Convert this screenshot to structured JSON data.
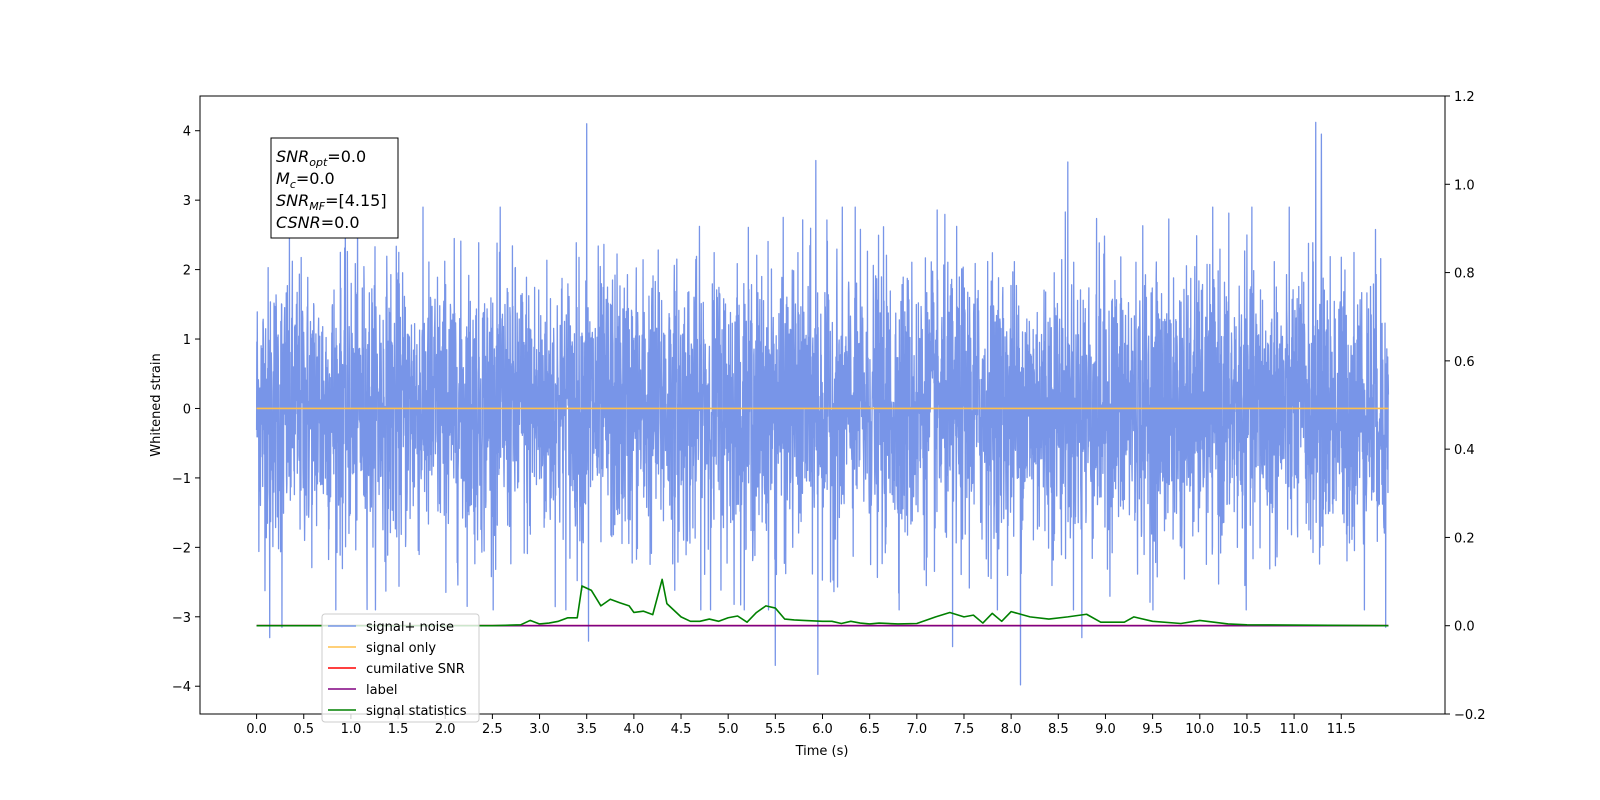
{
  "chart_data": {
    "type": "line",
    "xlabel": "Time (s)",
    "ylabel": "Whitened strain",
    "xlim": [
      -0.6,
      12.6
    ],
    "ylim": [
      -4.4,
      4.5
    ],
    "y2lim": [
      -0.2,
      1.2
    ],
    "x_ticks": [
      0.0,
      0.5,
      1.0,
      1.5,
      2.0,
      2.5,
      3.0,
      3.5,
      4.0,
      4.5,
      5.0,
      5.5,
      6.0,
      6.5,
      7.0,
      7.5,
      8.0,
      8.5,
      9.0,
      9.5,
      10.0,
      10.5,
      11.0,
      11.5
    ],
    "x_tick_labels": [
      "0.0",
      "0.5",
      "1.0",
      "1.5",
      "2.0",
      "2.5",
      "3.0",
      "3.5",
      "4.0",
      "4.5",
      "5.0",
      "5.5",
      "6.0",
      "6.5",
      "7.0",
      "7.5",
      "8.0",
      "8.5",
      "9.0",
      "9.5",
      "10.0",
      "10.5",
      "11.0",
      "11.5"
    ],
    "y_ticks": [
      -4,
      -3,
      -2,
      -1,
      0,
      1,
      2,
      3,
      4
    ],
    "y_tick_labels": [
      "−4",
      "−3",
      "−2",
      "−1",
      "0",
      "1",
      "2",
      "3",
      "4"
    ],
    "y2_ticks": [
      -0.2,
      0.0,
      0.2,
      0.4,
      0.6,
      0.8,
      1.0,
      1.2
    ],
    "y2_tick_labels": [
      "−0.2",
      "0.0",
      "0.2",
      "0.4",
      "0.6",
      "0.8",
      "1.0",
      "1.2"
    ],
    "grid": false,
    "legend_position": "lower-left",
    "annotation": {
      "lines": [
        {
          "base": "SNR",
          "sub": "opt",
          "rest": "=0.0"
        },
        {
          "base": "M",
          "sub": "c",
          "rest": "=0.0"
        },
        {
          "base": "SNR",
          "sub": "MF",
          "rest": "=[4.15]"
        },
        {
          "base": "CSNR",
          "sub": "",
          "rest": "=0.0"
        }
      ]
    },
    "series": [
      {
        "name": "signal+ noise",
        "color": "#7895e8",
        "axis": "left",
        "kind": "noise",
        "x_range": [
          0.0,
          12.0
        ],
        "std": 1.0,
        "peaks": [
          [
            0.14,
            -3.3
          ],
          [
            0.27,
            -3.15
          ],
          [
            3.5,
            4.1
          ],
          [
            3.52,
            -3.35
          ],
          [
            5.5,
            -3.7
          ],
          [
            5.93,
            3.57
          ],
          [
            5.95,
            -3.83
          ],
          [
            7.38,
            -3.43
          ],
          [
            8.1,
            -3.98
          ],
          [
            8.6,
            3.55
          ],
          [
            8.75,
            -3.3
          ],
          [
            11.23,
            4.12
          ],
          [
            11.29,
            3.95
          ],
          [
            11.97,
            -3.15
          ]
        ]
      },
      {
        "name": "signal only",
        "color": "#ffc04d",
        "axis": "left",
        "x": [
          0.0,
          12.0
        ],
        "y": [
          0.0,
          0.0
        ]
      },
      {
        "name": "cumilative SNR",
        "color": "#ff0000",
        "axis": "right",
        "x": [
          0.0,
          12.0
        ],
        "y": [
          0.0,
          0.0
        ]
      },
      {
        "name": "label",
        "color": "#800080",
        "axis": "right",
        "x": [
          0.0,
          12.0
        ],
        "y": [
          0.0,
          0.0
        ]
      },
      {
        "name": "signal statistics",
        "color": "#008000",
        "axis": "right",
        "x": [
          0.0,
          2.5,
          2.8,
          2.9,
          3.0,
          3.1,
          3.2,
          3.3,
          3.4,
          3.45,
          3.55,
          3.65,
          3.75,
          3.85,
          3.95,
          4.0,
          4.1,
          4.2,
          4.3,
          4.35,
          4.5,
          4.6,
          4.7,
          4.8,
          4.9,
          5.0,
          5.1,
          5.2,
          5.3,
          5.4,
          5.5,
          5.6,
          5.7,
          5.8,
          6.0,
          6.1,
          6.2,
          6.3,
          6.4,
          6.5,
          6.6,
          6.8,
          7.0,
          7.2,
          7.35,
          7.5,
          7.6,
          7.7,
          7.8,
          7.9,
          8.0,
          8.2,
          8.4,
          8.6,
          8.8,
          8.95,
          9.2,
          9.3,
          9.5,
          9.8,
          10.0,
          10.3,
          10.5,
          12.0
        ],
        "y": [
          0.0,
          0.0,
          0.002,
          0.012,
          0.004,
          0.006,
          0.01,
          0.018,
          0.018,
          0.09,
          0.08,
          0.045,
          0.06,
          0.052,
          0.045,
          0.03,
          0.033,
          0.025,
          0.105,
          0.05,
          0.02,
          0.01,
          0.01,
          0.015,
          0.01,
          0.018,
          0.022,
          0.008,
          0.03,
          0.045,
          0.04,
          0.015,
          0.013,
          0.012,
          0.01,
          0.01,
          0.005,
          0.01,
          0.006,
          0.004,
          0.006,
          0.004,
          0.005,
          0.02,
          0.03,
          0.02,
          0.024,
          0.006,
          0.028,
          0.01,
          0.032,
          0.02,
          0.015,
          0.02,
          0.026,
          0.008,
          0.008,
          0.02,
          0.01,
          0.005,
          0.012,
          0.004,
          0.002,
          0.0
        ]
      }
    ],
    "legend": [
      {
        "name": "signal+ noise",
        "color": "#7895e8"
      },
      {
        "name": "signal only",
        "color": "#ffc04d"
      },
      {
        "name": "cumilative SNR",
        "color": "#ff0000"
      },
      {
        "name": "label",
        "color": "#800080"
      },
      {
        "name": "signal statistics",
        "color": "#008000"
      }
    ]
  }
}
